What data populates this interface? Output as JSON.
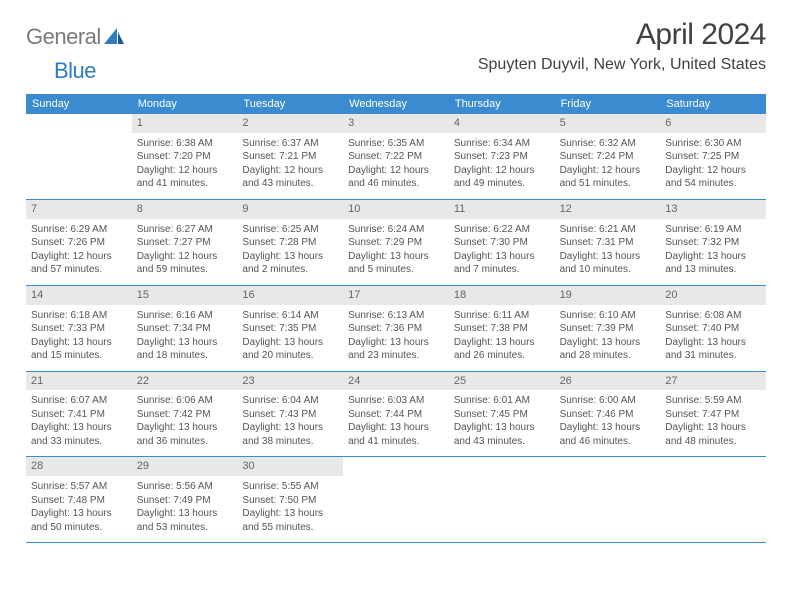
{
  "logo": {
    "word1": "General",
    "word2": "Blue"
  },
  "title": "April 2024",
  "location": "Spuyten Duyvil, New York, United States",
  "colors": {
    "header_bg": "#3b8bd0",
    "header_text": "#ffffff",
    "daynum_bg": "#e8e8e8",
    "text": "#555555",
    "rule": "#3b8bd0"
  },
  "weekdays": [
    "Sunday",
    "Monday",
    "Tuesday",
    "Wednesday",
    "Thursday",
    "Friday",
    "Saturday"
  ],
  "grid": {
    "rows": 5,
    "cols": 7,
    "start_offset": 1,
    "days_in_month": 30
  },
  "days": {
    "1": {
      "sunrise": "6:38 AM",
      "sunset": "7:20 PM",
      "daylight": "12 hours and 41 minutes."
    },
    "2": {
      "sunrise": "6:37 AM",
      "sunset": "7:21 PM",
      "daylight": "12 hours and 43 minutes."
    },
    "3": {
      "sunrise": "6:35 AM",
      "sunset": "7:22 PM",
      "daylight": "12 hours and 46 minutes."
    },
    "4": {
      "sunrise": "6:34 AM",
      "sunset": "7:23 PM",
      "daylight": "12 hours and 49 minutes."
    },
    "5": {
      "sunrise": "6:32 AM",
      "sunset": "7:24 PM",
      "daylight": "12 hours and 51 minutes."
    },
    "6": {
      "sunrise": "6:30 AM",
      "sunset": "7:25 PM",
      "daylight": "12 hours and 54 minutes."
    },
    "7": {
      "sunrise": "6:29 AM",
      "sunset": "7:26 PM",
      "daylight": "12 hours and 57 minutes."
    },
    "8": {
      "sunrise": "6:27 AM",
      "sunset": "7:27 PM",
      "daylight": "12 hours and 59 minutes."
    },
    "9": {
      "sunrise": "6:25 AM",
      "sunset": "7:28 PM",
      "daylight": "13 hours and 2 minutes."
    },
    "10": {
      "sunrise": "6:24 AM",
      "sunset": "7:29 PM",
      "daylight": "13 hours and 5 minutes."
    },
    "11": {
      "sunrise": "6:22 AM",
      "sunset": "7:30 PM",
      "daylight": "13 hours and 7 minutes."
    },
    "12": {
      "sunrise": "6:21 AM",
      "sunset": "7:31 PM",
      "daylight": "13 hours and 10 minutes."
    },
    "13": {
      "sunrise": "6:19 AM",
      "sunset": "7:32 PM",
      "daylight": "13 hours and 13 minutes."
    },
    "14": {
      "sunrise": "6:18 AM",
      "sunset": "7:33 PM",
      "daylight": "13 hours and 15 minutes."
    },
    "15": {
      "sunrise": "6:16 AM",
      "sunset": "7:34 PM",
      "daylight": "13 hours and 18 minutes."
    },
    "16": {
      "sunrise": "6:14 AM",
      "sunset": "7:35 PM",
      "daylight": "13 hours and 20 minutes."
    },
    "17": {
      "sunrise": "6:13 AM",
      "sunset": "7:36 PM",
      "daylight": "13 hours and 23 minutes."
    },
    "18": {
      "sunrise": "6:11 AM",
      "sunset": "7:38 PM",
      "daylight": "13 hours and 26 minutes."
    },
    "19": {
      "sunrise": "6:10 AM",
      "sunset": "7:39 PM",
      "daylight": "13 hours and 28 minutes."
    },
    "20": {
      "sunrise": "6:08 AM",
      "sunset": "7:40 PM",
      "daylight": "13 hours and 31 minutes."
    },
    "21": {
      "sunrise": "6:07 AM",
      "sunset": "7:41 PM",
      "daylight": "13 hours and 33 minutes."
    },
    "22": {
      "sunrise": "6:06 AM",
      "sunset": "7:42 PM",
      "daylight": "13 hours and 36 minutes."
    },
    "23": {
      "sunrise": "6:04 AM",
      "sunset": "7:43 PM",
      "daylight": "13 hours and 38 minutes."
    },
    "24": {
      "sunrise": "6:03 AM",
      "sunset": "7:44 PM",
      "daylight": "13 hours and 41 minutes."
    },
    "25": {
      "sunrise": "6:01 AM",
      "sunset": "7:45 PM",
      "daylight": "13 hours and 43 minutes."
    },
    "26": {
      "sunrise": "6:00 AM",
      "sunset": "7:46 PM",
      "daylight": "13 hours and 46 minutes."
    },
    "27": {
      "sunrise": "5:59 AM",
      "sunset": "7:47 PM",
      "daylight": "13 hours and 48 minutes."
    },
    "28": {
      "sunrise": "5:57 AM",
      "sunset": "7:48 PM",
      "daylight": "13 hours and 50 minutes."
    },
    "29": {
      "sunrise": "5:56 AM",
      "sunset": "7:49 PM",
      "daylight": "13 hours and 53 minutes."
    },
    "30": {
      "sunrise": "5:55 AM",
      "sunset": "7:50 PM",
      "daylight": "13 hours and 55 minutes."
    }
  },
  "labels": {
    "sunrise": "Sunrise:",
    "sunset": "Sunset:",
    "daylight": "Daylight:"
  }
}
